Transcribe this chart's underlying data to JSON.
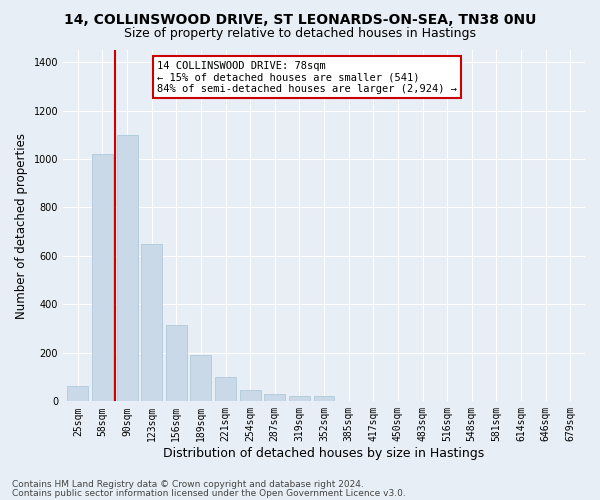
{
  "title1": "14, COLLINSWOOD DRIVE, ST LEONARDS-ON-SEA, TN38 0NU",
  "title2": "Size of property relative to detached houses in Hastings",
  "xlabel": "Distribution of detached houses by size in Hastings",
  "ylabel": "Number of detached properties",
  "categories": [
    "25sqm",
    "58sqm",
    "90sqm",
    "123sqm",
    "156sqm",
    "189sqm",
    "221sqm",
    "254sqm",
    "287sqm",
    "319sqm",
    "352sqm",
    "385sqm",
    "417sqm",
    "450sqm",
    "483sqm",
    "516sqm",
    "548sqm",
    "581sqm",
    "614sqm",
    "646sqm",
    "679sqm"
  ],
  "values": [
    65,
    1020,
    1100,
    650,
    315,
    190,
    100,
    48,
    30,
    20,
    20,
    0,
    0,
    0,
    0,
    0,
    0,
    0,
    0,
    0,
    0
  ],
  "bar_color": "#c9d9e8",
  "bar_edge_color": "#a8c4d8",
  "red_line_x": 1.5,
  "annotation_text": "14 COLLINSWOOD DRIVE: 78sqm\n← 15% of detached houses are smaller (541)\n84% of semi-detached houses are larger (2,924) →",
  "annotation_box_color": "#ffffff",
  "annotation_box_edge": "#cc0000",
  "red_line_color": "#cc0000",
  "ylim": [
    0,
    1450
  ],
  "yticks": [
    0,
    200,
    400,
    600,
    800,
    1000,
    1200,
    1400
  ],
  "footer1": "Contains HM Land Registry data © Crown copyright and database right 2024.",
  "footer2": "Contains public sector information licensed under the Open Government Licence v3.0.",
  "background_color": "#e8eef5",
  "plot_background": "#e8eef5",
  "grid_color": "#ffffff",
  "title1_fontsize": 10,
  "title2_fontsize": 9,
  "xlabel_fontsize": 9,
  "ylabel_fontsize": 8.5,
  "tick_fontsize": 7,
  "footer_fontsize": 6.5,
  "annotation_fontsize": 7.5
}
